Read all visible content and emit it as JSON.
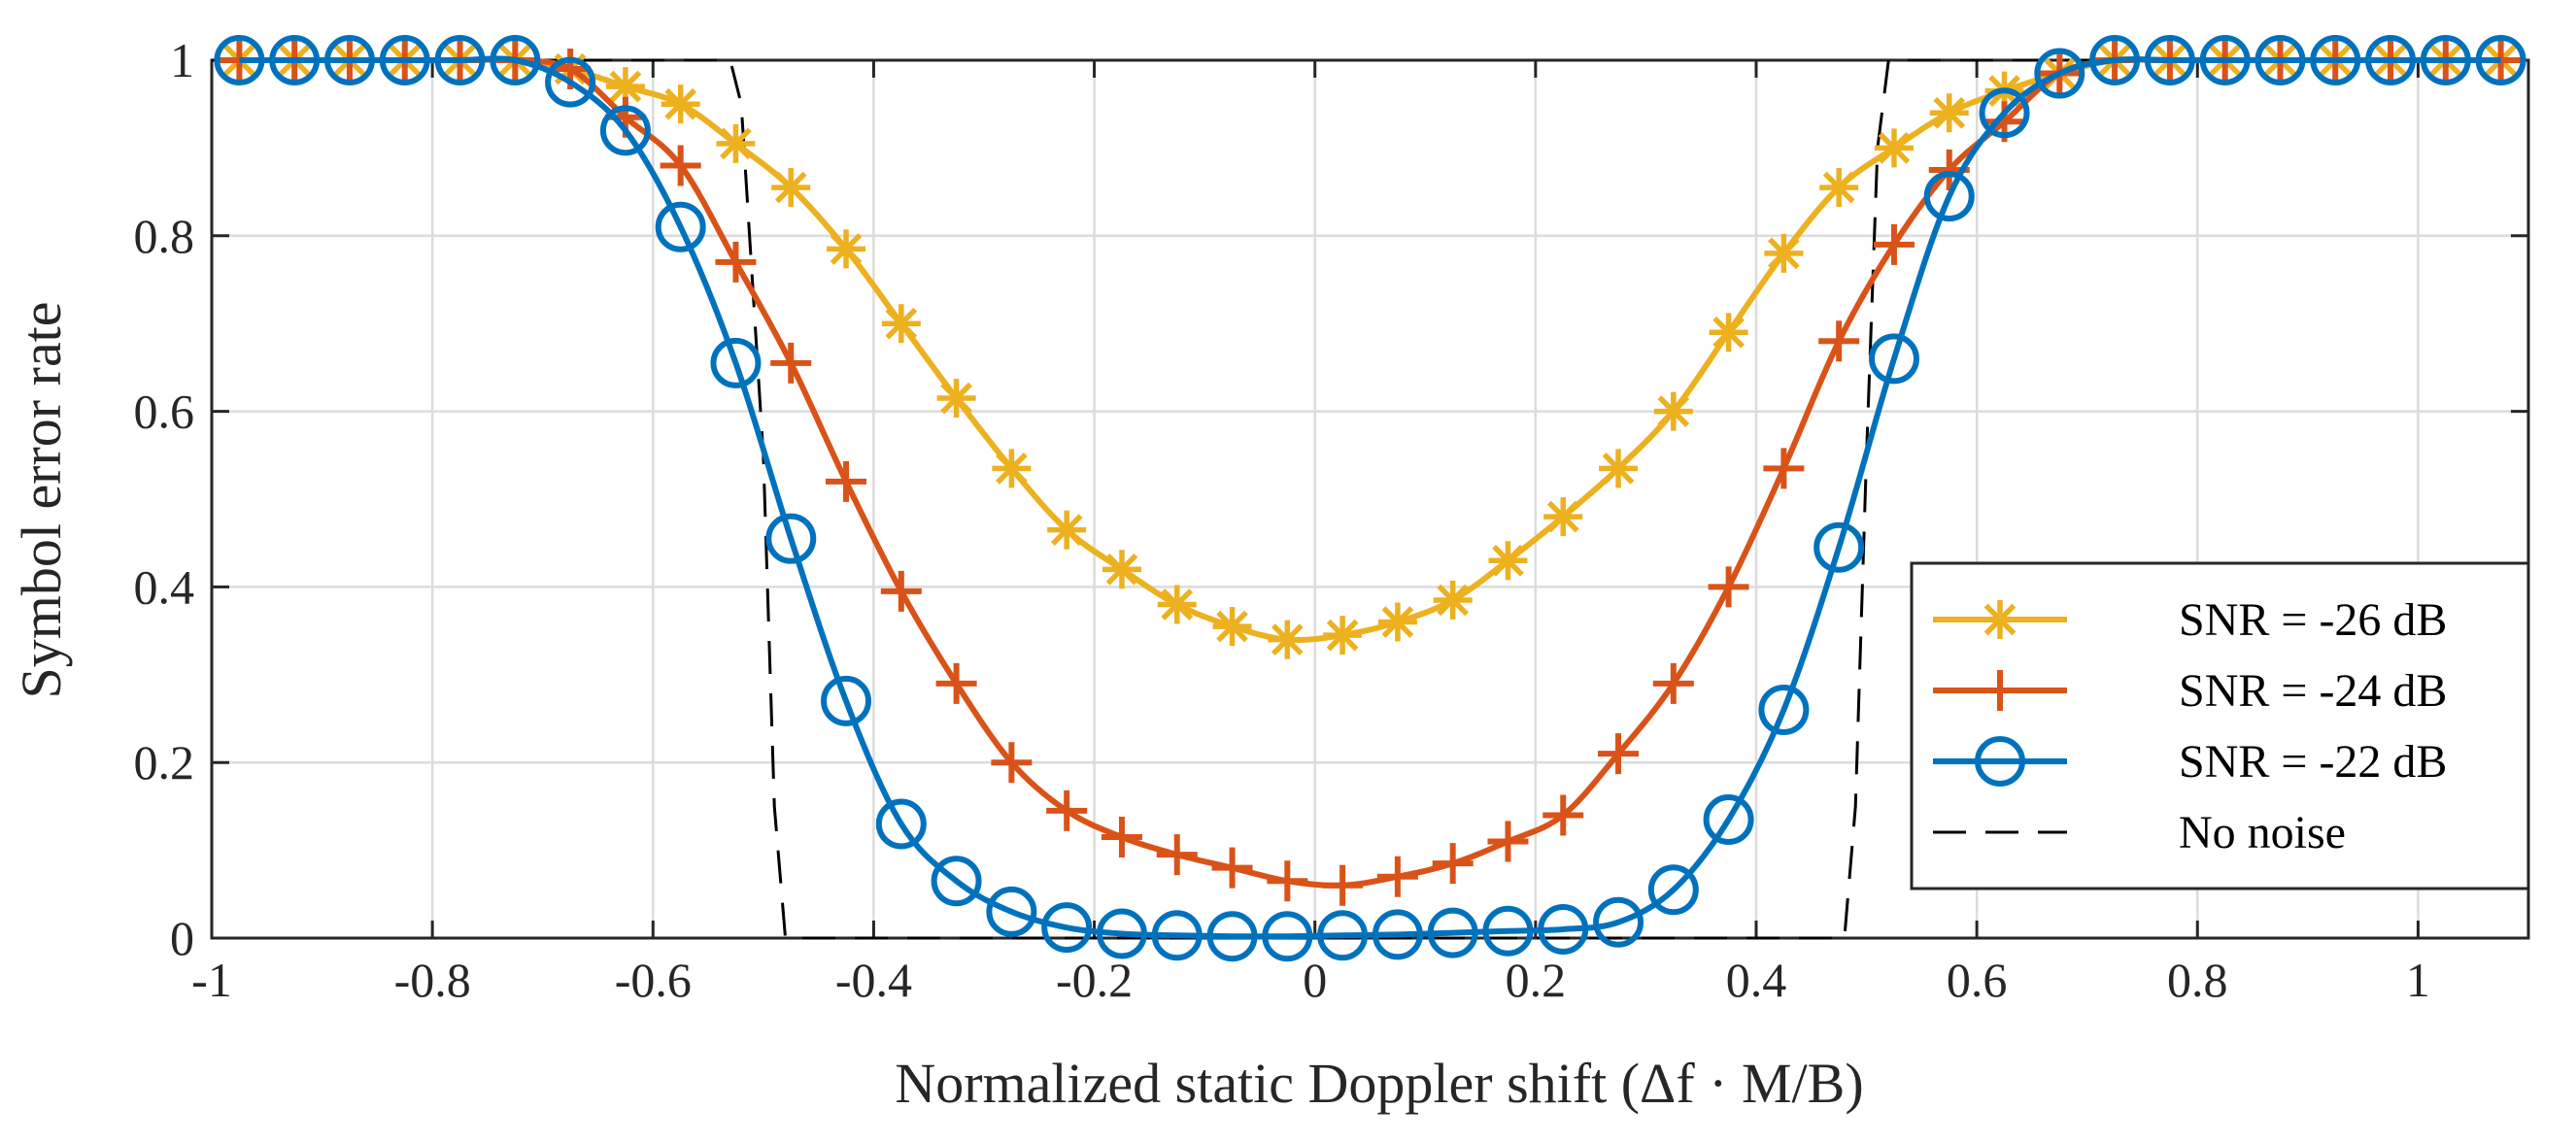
{
  "chart_data": {
    "type": "line",
    "xlabel": "Normalized static Doppler shift (Δf · M/B)",
    "ylabel": "Symbol error rate",
    "xlim": [
      -1,
      1.1
    ],
    "ylim": [
      0,
      1
    ],
    "grid": true,
    "legend_position": "bottom-right",
    "x_ticks": [
      -1,
      -0.8,
      -0.6,
      -0.4,
      -0.2,
      0,
      0.2,
      0.4,
      0.6,
      0.8,
      1
    ],
    "x_tick_labels": [
      "-1",
      "-0.8",
      "-0.6",
      "-0.4",
      "-0.2",
      "0",
      "0.2",
      "0.4",
      "0.6",
      "0.8",
      "1"
    ],
    "y_ticks": [
      0,
      0.2,
      0.4,
      0.6,
      0.8,
      1
    ],
    "y_tick_labels": [
      "0",
      "0.2",
      "0.4",
      "0.6",
      "0.8",
      "1"
    ],
    "x": [
      -0.975,
      -0.925,
      -0.875,
      -0.825,
      -0.775,
      -0.725,
      -0.675,
      -0.625,
      -0.575,
      -0.525,
      -0.475,
      -0.425,
      -0.375,
      -0.325,
      -0.275,
      -0.225,
      -0.175,
      -0.125,
      -0.075,
      -0.025,
      0.025,
      0.075,
      0.125,
      0.175,
      0.225,
      0.275,
      0.325,
      0.375,
      0.425,
      0.475,
      0.525,
      0.575,
      0.625,
      0.675,
      0.725,
      0.775,
      0.825,
      0.875,
      0.925,
      0.975,
      1.025,
      1.075
    ],
    "series": [
      {
        "name": "SNR = -26 dB",
        "color": "#EDB120",
        "marker": "asterisk",
        "line_style": "solid",
        "values": [
          1,
          1,
          1,
          1,
          1,
          1,
          0.99,
          0.97,
          0.95,
          0.905,
          0.855,
          0.785,
          0.7,
          0.615,
          0.535,
          0.465,
          0.42,
          0.38,
          0.355,
          0.34,
          0.345,
          0.36,
          0.385,
          0.43,
          0.48,
          0.535,
          0.6,
          0.69,
          0.78,
          0.855,
          0.9,
          0.94,
          0.965,
          0.985,
          1,
          1,
          1,
          1,
          1,
          1,
          1,
          1
        ]
      },
      {
        "name": "SNR = -24 dB",
        "color": "#D95319",
        "marker": "plus",
        "line_style": "solid",
        "values": [
          1,
          1,
          1,
          1,
          1,
          1,
          0.99,
          0.935,
          0.88,
          0.77,
          0.655,
          0.52,
          0.395,
          0.29,
          0.2,
          0.145,
          0.115,
          0.095,
          0.08,
          0.065,
          0.06,
          0.07,
          0.085,
          0.11,
          0.14,
          0.21,
          0.29,
          0.4,
          0.535,
          0.68,
          0.79,
          0.875,
          0.93,
          0.985,
          1,
          1,
          1,
          1,
          1,
          1,
          1,
          1
        ]
      },
      {
        "name": "SNR = -22 dB",
        "color": "#0072BD",
        "marker": "circle",
        "line_style": "solid",
        "values": [
          1,
          1,
          1,
          1,
          1,
          1,
          0.975,
          0.92,
          0.81,
          0.655,
          0.455,
          0.27,
          0.13,
          0.065,
          0.03,
          0.012,
          0.005,
          0.003,
          0.002,
          0.002,
          0.003,
          0.004,
          0.006,
          0.008,
          0.01,
          0.018,
          0.055,
          0.135,
          0.26,
          0.445,
          0.66,
          0.845,
          0.94,
          0.985,
          1,
          1,
          1,
          1,
          1,
          1,
          1,
          1
        ]
      },
      {
        "name": "No noise",
        "color": "#000000",
        "marker": "none",
        "line_style": "dashed",
        "x": [
          -1,
          -0.53,
          -0.52,
          -0.5,
          -0.49,
          -0.48,
          0.48,
          0.49,
          0.5,
          0.51,
          0.52,
          1.1
        ],
        "values": [
          1,
          1,
          0.95,
          0.55,
          0.15,
          0,
          0,
          0.15,
          0.55,
          0.9,
          1,
          1
        ]
      }
    ]
  }
}
